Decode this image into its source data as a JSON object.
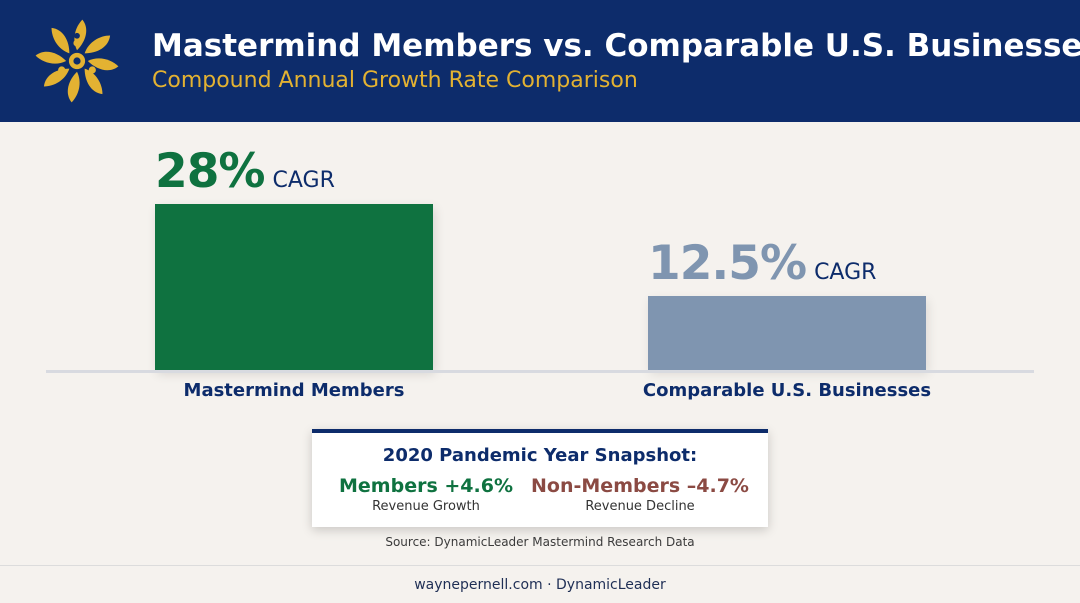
{
  "header": {
    "title": "Mastermind Members vs. Comparable U.S. Businesses",
    "subtitle": "Compound Annual Growth Rate Comparison",
    "logo_icon": "sunburst-people-logo-icon",
    "background_color": "#0d2c6b",
    "accent_color": "#e3b232"
  },
  "chart_data": {
    "type": "bar",
    "title": "Mastermind Members vs. Comparable U.S. Businesses",
    "subtitle": "Compound Annual Growth Rate Comparison",
    "categories": [
      "Mastermind Members",
      "Comparable U.S. Businesses"
    ],
    "values": [
      28,
      12.5
    ],
    "value_labels": [
      "28%",
      "12.5%"
    ],
    "value_unit_label": "CAGR",
    "colors": [
      "#0f7240",
      "#7f95b0"
    ],
    "label_colors": [
      "#0f7240",
      "#7f95b0"
    ],
    "ylim": [
      0,
      28
    ],
    "grid": false,
    "legend": "none"
  },
  "snapshot": {
    "title": "2020 Pandemic Year Snapshot:",
    "members": {
      "stat": "Members +4.6%",
      "desc": "Revenue Growth",
      "color": "#0f7240"
    },
    "non_members": {
      "stat": "Non-Members –4.7%",
      "desc": "Revenue Decline",
      "color": "#8b4a43"
    }
  },
  "source": "Source: DynamicLeader Mastermind Research Data",
  "footer": "waynepernell.com · DynamicLeader"
}
